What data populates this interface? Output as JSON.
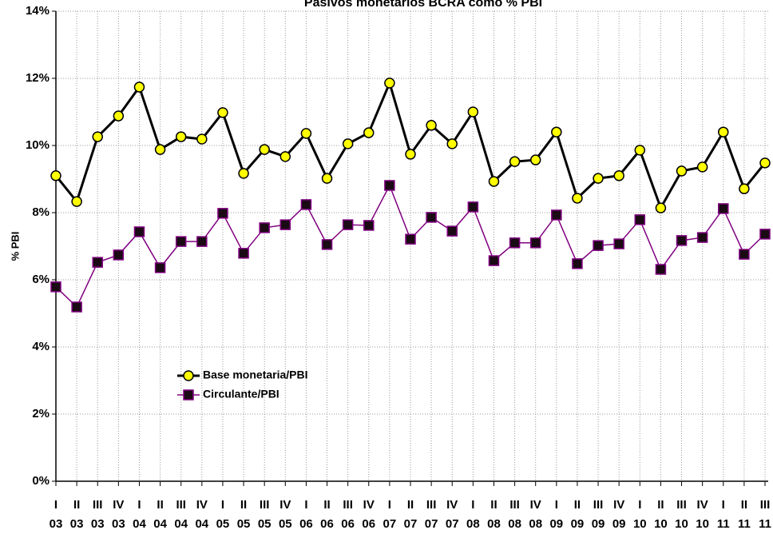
{
  "chart_data": {
    "type": "line",
    "title": "Pasivos monetarios BCRA como % PBI",
    "y_label": "% PBI",
    "categories": [
      [
        "I",
        "03"
      ],
      [
        "II",
        "03"
      ],
      [
        "III",
        "03"
      ],
      [
        "IV",
        "03"
      ],
      [
        "I",
        "04"
      ],
      [
        "II",
        "04"
      ],
      [
        "III",
        "04"
      ],
      [
        "IV",
        "04"
      ],
      [
        "I",
        "05"
      ],
      [
        "II",
        "05"
      ],
      [
        "III",
        "05"
      ],
      [
        "IV",
        "05"
      ],
      [
        "I",
        "06"
      ],
      [
        "II",
        "06"
      ],
      [
        "III",
        "06"
      ],
      [
        "IV",
        "06"
      ],
      [
        "I",
        "07"
      ],
      [
        "II",
        "07"
      ],
      [
        "III",
        "07"
      ],
      [
        "IV",
        "07"
      ],
      [
        "I",
        "08"
      ],
      [
        "II",
        "08"
      ],
      [
        "III",
        "08"
      ],
      [
        "IV",
        "08"
      ],
      [
        "I",
        "09"
      ],
      [
        "II",
        "09"
      ],
      [
        "III",
        "09"
      ],
      [
        "IV",
        "09"
      ],
      [
        "I",
        "10"
      ],
      [
        "II",
        "10"
      ],
      [
        "III",
        "10"
      ],
      [
        "IV",
        "10"
      ],
      [
        "I",
        "11"
      ],
      [
        "II",
        "11"
      ],
      [
        "III",
        "11"
      ]
    ],
    "series": [
      {
        "name": "Base monetaria/PBI",
        "color": "#000000",
        "marker_color": "#ffff00",
        "values": [
          9.1,
          8.33,
          10.26,
          10.88,
          11.74,
          9.88,
          10.26,
          10.19,
          10.98,
          9.17,
          9.88,
          9.67,
          10.36,
          9.02,
          10.05,
          10.38,
          11.86,
          9.74,
          10.6,
          10.05,
          11.0,
          8.93,
          9.52,
          9.57,
          10.4,
          8.43,
          9.02,
          9.1,
          9.86,
          8.14,
          9.24,
          9.36,
          10.4,
          8.71,
          9.48
        ]
      },
      {
        "name": "Circulante/PBI",
        "color": "#800080",
        "marker_color": "#1a0a14",
        "values": [
          5.79,
          5.19,
          6.52,
          6.74,
          7.43,
          6.36,
          7.14,
          7.14,
          7.98,
          6.79,
          7.55,
          7.64,
          8.24,
          7.05,
          7.64,
          7.62,
          8.81,
          7.21,
          7.86,
          7.45,
          8.17,
          6.57,
          7.1,
          7.1,
          7.93,
          6.48,
          7.02,
          7.07,
          7.79,
          6.31,
          7.17,
          7.26,
          8.12,
          6.76,
          7.36
        ]
      }
    ],
    "ylim": [
      0,
      14
    ],
    "yticks": [
      {
        "value": 0,
        "label": "0%"
      },
      {
        "value": 2,
        "label": "2%"
      },
      {
        "value": 4,
        "label": "4%"
      },
      {
        "value": 6,
        "label": "6%"
      },
      {
        "value": 8,
        "label": "8%"
      },
      {
        "value": 10,
        "label": "10%"
      },
      {
        "value": 12,
        "label": "12%"
      },
      {
        "value": 14,
        "label": "14%"
      }
    ],
    "grid": true
  }
}
